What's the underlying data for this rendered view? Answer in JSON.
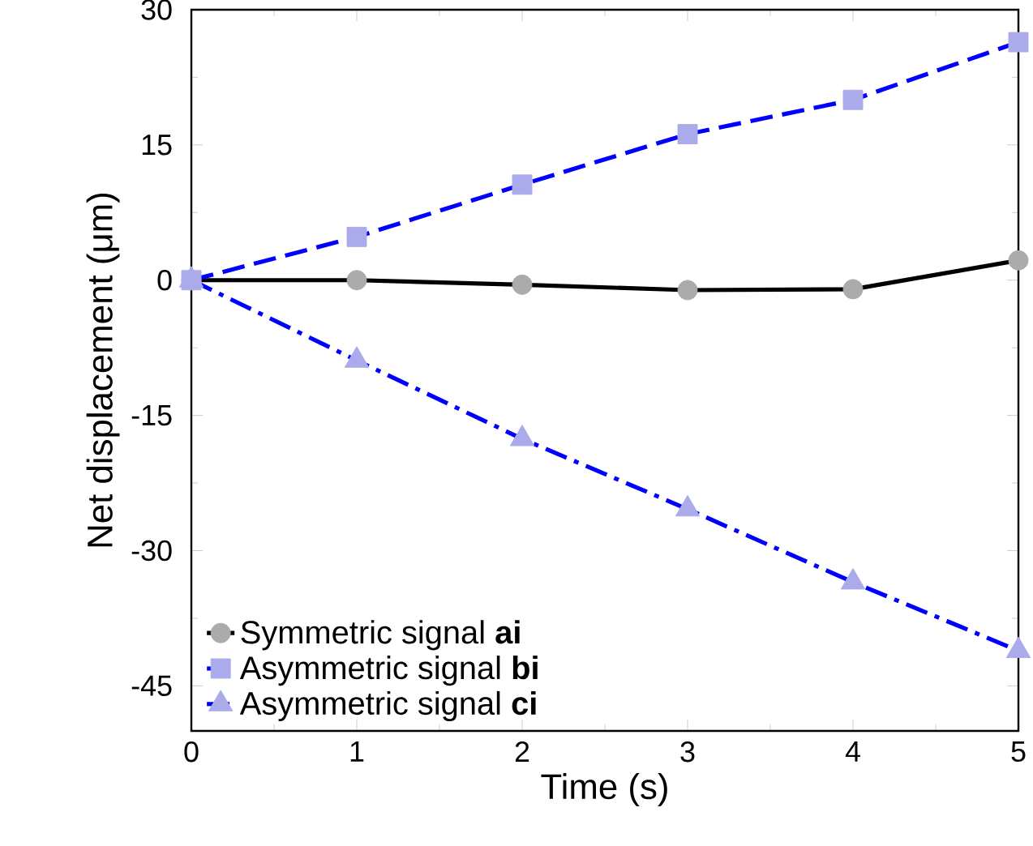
{
  "chart_data": {
    "type": "line",
    "xlabel": "Time (s)",
    "ylabel": "Net displacement (μm)",
    "x": [
      0,
      1,
      2,
      3,
      4,
      5
    ],
    "series": [
      {
        "name": "Symmetric signal **ai**",
        "color": "#000000",
        "marker": "circle",
        "line_style": "solid",
        "values": [
          0,
          0,
          -0.5,
          -1.1,
          -1.0,
          2.2
        ]
      },
      {
        "name": "Asymmetric signal **bi**",
        "color": "#0000ff",
        "marker": "square",
        "line_style": "dashed",
        "values": [
          0,
          4.8,
          10.6,
          16.2,
          20.0,
          26.4
        ]
      },
      {
        "name": "Asymmetric signal **ci**",
        "color": "#0000ff",
        "marker": "triangle",
        "line_style": "dashdotted",
        "values": [
          0,
          -8.9,
          -17.6,
          -25.4,
          -33.5,
          -41.1
        ]
      }
    ],
    "xlim": [
      0,
      5
    ],
    "ylim": [
      -50,
      30
    ],
    "xticks": [
      0,
      1,
      2,
      3,
      4,
      5
    ],
    "yticks": [
      -45,
      -30,
      -15,
      0,
      15,
      30
    ],
    "legend": "bottom left",
    "grid": false
  }
}
